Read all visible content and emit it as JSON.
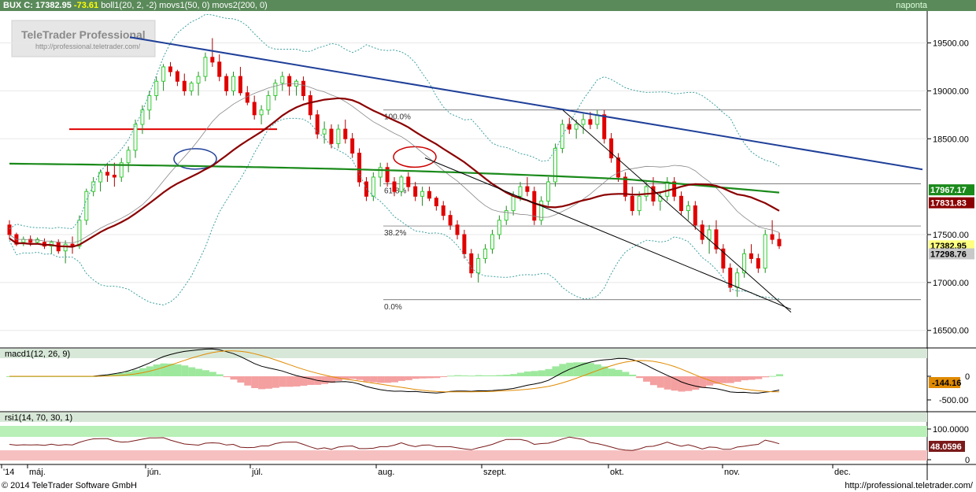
{
  "header": {
    "symbol": "BUX",
    "close_label": "C:",
    "close_value": "17382.95",
    "change": "-73.61",
    "indicators": "boll1(20, 2, -2) movs1(50, 0) movs2(200, 0)",
    "period": "naponta"
  },
  "watermark": {
    "title": "TeleTrader Professional",
    "url": "http://professional.teletrader.com/"
  },
  "colors": {
    "header_bg": "#5a8a5a",
    "bull": "#33cc33",
    "bear": "#e00000",
    "trendline_blue": "#1f3f99",
    "ma50": "#8b0000",
    "ma200": "#1a8a1a",
    "bollinger": "#40a0a0",
    "label_yellow": "#ffff80"
  },
  "fib": {
    "levels": [
      "100.0%",
      "61.8%",
      "38.2%",
      "0.0%"
    ],
    "values": [
      18800,
      18030,
      17590,
      16820
    ]
  },
  "price_labels": {
    "ma200": "17967.17",
    "ma50": "17831.83",
    "last": "17382.95",
    "boll_mid": "17298.76"
  },
  "macd": {
    "title": "macd1(12, 26, 9)",
    "value_label": "-144.16",
    "ticks": [
      "0",
      "-500.00"
    ]
  },
  "rsi": {
    "title": "rsi1(14, 70, 30, 1)",
    "value_label": "48.0596",
    "ticks": [
      "100.0000",
      "0"
    ]
  },
  "footer": {
    "copyright": "© 2014 TeleTrader Software GmbH",
    "url": "http://professional.teletrader.com/"
  },
  "chart_data": {
    "type": "candlestick",
    "title": "BUX",
    "y_ticks": [
      "19500.00",
      "19000.00",
      "18500.00",
      "17500.00",
      "17000.00",
      "16500.00"
    ],
    "ylim": [
      16350,
      19800
    ],
    "x_labels": [
      "'14",
      "máj.",
      "jún.",
      "júl.",
      "aug.",
      "szept.",
      "okt.",
      "nov.",
      "dec."
    ],
    "candles": [
      [
        17600,
        17650,
        17450,
        17500
      ],
      [
        17500,
        17520,
        17380,
        17400
      ],
      [
        17420,
        17480,
        17380,
        17450
      ],
      [
        17450,
        17490,
        17380,
        17420
      ],
      [
        17420,
        17470,
        17400,
        17450
      ],
      [
        17420,
        17460,
        17350,
        17380
      ],
      [
        17380,
        17440,
        17300,
        17420
      ],
      [
        17420,
        17450,
        17300,
        17330
      ],
      [
        17330,
        17440,
        17200,
        17400
      ],
      [
        17400,
        17480,
        17300,
        17380
      ],
      [
        17380,
        17700,
        17350,
        17650
      ],
      [
        17650,
        17980,
        17600,
        17950
      ],
      [
        17950,
        18100,
        17900,
        18050
      ],
      [
        18050,
        18180,
        17950,
        18150
      ],
      [
        18150,
        18250,
        18050,
        18120
      ],
      [
        18120,
        18250,
        18000,
        18100
      ],
      [
        18100,
        18300,
        18050,
        18250
      ],
      [
        18250,
        18420,
        18150,
        18380
      ],
      [
        18380,
        18700,
        18300,
        18650
      ],
      [
        18650,
        18850,
        18550,
        18800
      ],
      [
        18800,
        19000,
        18700,
        18950
      ],
      [
        18950,
        19150,
        18900,
        19100
      ],
      [
        19100,
        19280,
        19000,
        19250
      ],
      [
        19250,
        19300,
        19150,
        19200
      ],
      [
        19200,
        19220,
        19050,
        19100
      ],
      [
        19100,
        19180,
        18950,
        19000
      ],
      [
        19000,
        19100,
        18950,
        19080
      ],
      [
        19080,
        19200,
        18950,
        19150
      ],
      [
        19150,
        19400,
        19100,
        19350
      ],
      [
        19350,
        19550,
        19250,
        19300
      ],
      [
        19300,
        19380,
        19100,
        19150
      ],
      [
        19150,
        19180,
        18950,
        19000
      ],
      [
        19000,
        19200,
        18950,
        19150
      ],
      [
        19150,
        19250,
        18950,
        18980
      ],
      [
        18980,
        19050,
        18850,
        18880
      ],
      [
        18880,
        18950,
        18700,
        18750
      ],
      [
        18750,
        18850,
        18650,
        18800
      ],
      [
        18800,
        19000,
        18750,
        18950
      ],
      [
        18950,
        19120,
        18900,
        19080
      ],
      [
        19080,
        19200,
        19000,
        19150
      ],
      [
        19150,
        19180,
        18950,
        19050
      ],
      [
        19050,
        19120,
        18950,
        19100
      ],
      [
        19100,
        19150,
        18900,
        18950
      ],
      [
        18950,
        19000,
        18700,
        18750
      ],
      [
        18750,
        18800,
        18500,
        18550
      ],
      [
        18550,
        18680,
        18450,
        18600
      ],
      [
        18600,
        18650,
        18400,
        18450
      ],
      [
        18450,
        18650,
        18400,
        18600
      ],
      [
        18600,
        18700,
        18450,
        18500
      ],
      [
        18500,
        18560,
        18300,
        18350
      ],
      [
        18350,
        18400,
        18000,
        18050
      ],
      [
        18050,
        18100,
        17850,
        17900
      ],
      [
        17900,
        18150,
        17850,
        18100
      ],
      [
        18100,
        18250,
        18000,
        18200
      ],
      [
        18200,
        18250,
        18000,
        18050
      ],
      [
        18050,
        18100,
        17900,
        17950
      ],
      [
        17950,
        18120,
        17900,
        18100
      ],
      [
        18100,
        18150,
        17950,
        18000
      ],
      [
        18000,
        18050,
        17850,
        17900
      ],
      [
        17900,
        18000,
        17800,
        17950
      ],
      [
        17950,
        18000,
        17850,
        17880
      ],
      [
        17880,
        17900,
        17750,
        17800
      ],
      [
        17800,
        17850,
        17650,
        17700
      ],
      [
        17700,
        17750,
        17550,
        17600
      ],
      [
        17600,
        17650,
        17450,
        17500
      ],
      [
        17500,
        17550,
        17250,
        17300
      ],
      [
        17300,
        17350,
        17050,
        17100
      ],
      [
        17100,
        17300,
        17000,
        17250
      ],
      [
        17250,
        17400,
        17200,
        17350
      ],
      [
        17350,
        17550,
        17300,
        17500
      ],
      [
        17500,
        17700,
        17450,
        17650
      ],
      [
        17650,
        17800,
        17600,
        17750
      ],
      [
        17750,
        17950,
        17700,
        17900
      ],
      [
        17900,
        18050,
        17850,
        18000
      ],
      [
        18000,
        18100,
        17900,
        17950
      ],
      [
        17950,
        18000,
        17600,
        17650
      ],
      [
        17650,
        17900,
        17600,
        17850
      ],
      [
        17850,
        18100,
        17800,
        18050
      ],
      [
        18050,
        18450,
        18000,
        18400
      ],
      [
        18400,
        18700,
        18350,
        18650
      ],
      [
        18650,
        18720,
        18550,
        18600
      ],
      [
        18600,
        18700,
        18500,
        18650
      ],
      [
        18650,
        18760,
        18550,
        18700
      ],
      [
        18700,
        18780,
        18600,
        18650
      ],
      [
        18650,
        18800,
        18600,
        18750
      ],
      [
        18750,
        18800,
        18450,
        18500
      ],
      [
        18500,
        18560,
        18250,
        18300
      ],
      [
        18300,
        18350,
        18050,
        18100
      ],
      [
        18100,
        18150,
        17850,
        17900
      ],
      [
        17900,
        18000,
        17700,
        17750
      ],
      [
        17750,
        17950,
        17700,
        17900
      ],
      [
        17900,
        18050,
        17850,
        18000
      ],
      [
        18000,
        18100,
        17800,
        17850
      ],
      [
        17850,
        17950,
        17750,
        17900
      ],
      [
        17900,
        18100,
        17850,
        18050
      ],
      [
        18050,
        18100,
        17850,
        17900
      ],
      [
        17900,
        17950,
        17700,
        17750
      ],
      [
        17750,
        17850,
        17650,
        17800
      ],
      [
        17800,
        17850,
        17550,
        17600
      ],
      [
        17600,
        17650,
        17400,
        17450
      ],
      [
        17450,
        17600,
        17300,
        17550
      ],
      [
        17550,
        17650,
        17300,
        17350
      ],
      [
        17350,
        17400,
        17100,
        17150
      ],
      [
        17150,
        17200,
        16900,
        16950
      ],
      [
        16950,
        17150,
        16850,
        17100
      ],
      [
        17100,
        17350,
        17050,
        17300
      ],
      [
        17300,
        17400,
        17200,
        17250
      ],
      [
        17250,
        17300,
        17100,
        17150
      ],
      [
        17150,
        17550,
        17100,
        17500
      ],
      [
        17500,
        17650,
        17400,
        17450
      ],
      [
        17450,
        17520,
        17350,
        17383
      ]
    ]
  }
}
